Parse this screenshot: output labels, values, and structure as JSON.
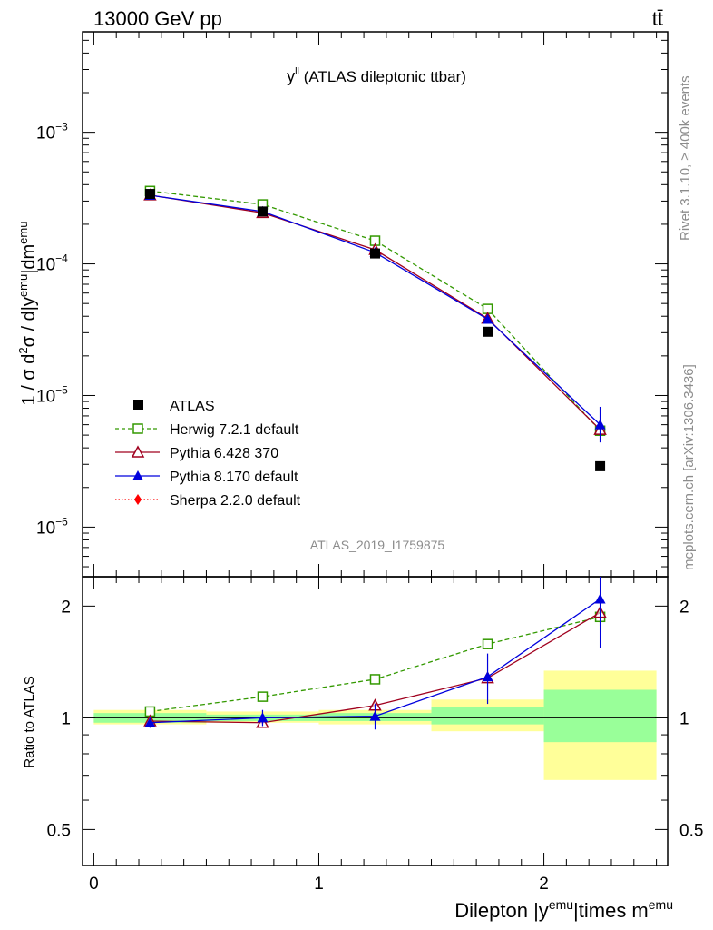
{
  "header": {
    "energy": "13000 GeV pp",
    "process": "tt̄"
  },
  "side_labels": {
    "rivet": "Rivet 3.1.10, ≥ 400k events",
    "mcplots": "mcplots.cern.ch [arXiv:1306.3436]"
  },
  "colors": {
    "atlas": "#000000",
    "herwig": "#339900",
    "pythia6": "#a0001e",
    "pythia8": "#0000dd",
    "sherpa": "#ff0000",
    "band_inner": "#99ff99",
    "band_outer": "#ffff99"
  },
  "chart_data": [
    {
      "type": "scatter",
      "title": "y^ll (ATLAS dileptonic ttbar)",
      "title_main": "y",
      "title_sup": "ll",
      "title_rest": " (ATLAS dileptonic ttbar)",
      "analysis_id": "ATLAS_2019_I1759875",
      "ylabel": "1 / σ d²σ / d|y^emu|dm^emu",
      "yscale": "log",
      "ylim": [
        4.2e-07,
        0.0058
      ],
      "xlim": [
        -0.05,
        2.55
      ],
      "ytick_labels": [
        {
          "base": "10",
          "exp": "−3",
          "value": 0.001
        },
        {
          "base": "10",
          "exp": "−4",
          "value": 0.0001
        },
        {
          "base": "10",
          "exp": "−5",
          "value": 1e-05
        },
        {
          "base": "10",
          "exp": "−6",
          "value": 1e-06
        }
      ],
      "x": [
        0.25,
        0.75,
        1.25,
        1.75,
        2.25
      ],
      "series": [
        {
          "name": "ATLAS",
          "key": "atlas",
          "marker": "square-filled",
          "values": [
            0.00034,
            0.00025,
            0.00012,
            3.05e-05,
            2.9e-06
          ]
        },
        {
          "name": "Herwig 7.2.1 default",
          "key": "herwig",
          "marker": "square-open",
          "line": "dashed",
          "values": [
            0.000358,
            0.000283,
            0.00015,
            4.55e-05,
            5.4e-06
          ]
        },
        {
          "name": "Pythia 6.428 370",
          "key": "pythia6",
          "marker": "triangle-open",
          "line": "solid",
          "values": [
            0.000333,
            0.000244,
            0.000128,
            3.85e-05,
            5.5e-06
          ]
        },
        {
          "name": "Pythia 8.170 default",
          "key": "pythia8",
          "marker": "triangle-filled",
          "line": "solid",
          "values": [
            0.000332,
            0.00025,
            0.000122,
            3.8e-05,
            6e-06
          ]
        },
        {
          "name": "Sherpa 2.2.0 default",
          "key": "sherpa",
          "marker": "diamond-filled",
          "line": "dotted",
          "values": []
        }
      ]
    },
    {
      "type": "scatter",
      "ylabel": "Ratio to ATLAS",
      "xlabel": "Dilepton |y^emu|times m^emu",
      "yscale": "log",
      "ylim": [
        0.4,
        2.4
      ],
      "ytick_labels": [
        {
          "label": "2",
          "value": 2
        },
        {
          "label": "1",
          "value": 1
        },
        {
          "label": "0.5",
          "value": 0.5
        }
      ],
      "xtick_labels": [
        {
          "label": "0",
          "value": 0
        },
        {
          "label": "1",
          "value": 1
        },
        {
          "label": "2",
          "value": 2
        }
      ],
      "x": [
        0.25,
        0.75,
        1.25,
        1.75,
        2.25
      ],
      "bins": [
        [
          0,
          0.5
        ],
        [
          0.5,
          1.0
        ],
        [
          1.0,
          1.5
        ],
        [
          1.5,
          2.0
        ],
        [
          2.0,
          2.5
        ]
      ],
      "band_inner": [
        [
          0.97,
          1.03
        ],
        [
          0.98,
          1.02
        ],
        [
          0.98,
          1.03
        ],
        [
          0.96,
          1.07
        ],
        [
          0.86,
          1.19
        ]
      ],
      "band_outer": [
        [
          0.96,
          1.05
        ],
        [
          0.97,
          1.04
        ],
        [
          0.96,
          1.05
        ],
        [
          0.92,
          1.12
        ],
        [
          0.68,
          1.34
        ]
      ],
      "series": [
        {
          "name": "Herwig 7.2.1 default",
          "key": "herwig",
          "values": [
            1.04,
            1.14,
            1.27,
            1.58,
            1.87
          ],
          "err": [
            0.01,
            0.01,
            0.02,
            0.05,
            0.1
          ]
        },
        {
          "name": "Pythia 6.428 370",
          "key": "pythia6",
          "values": [
            0.98,
            0.97,
            1.08,
            1.28,
            1.92
          ],
          "err": [
            0.01,
            0.01,
            0.02,
            0.04,
            0.12
          ]
        },
        {
          "name": "Pythia 8.170 default",
          "key": "pythia8",
          "values": [
            0.97,
            1.0,
            1.01,
            1.29,
            2.09
          ],
          "err": [
            0.03,
            0.05,
            0.08,
            0.2,
            0.55
          ]
        }
      ]
    }
  ]
}
